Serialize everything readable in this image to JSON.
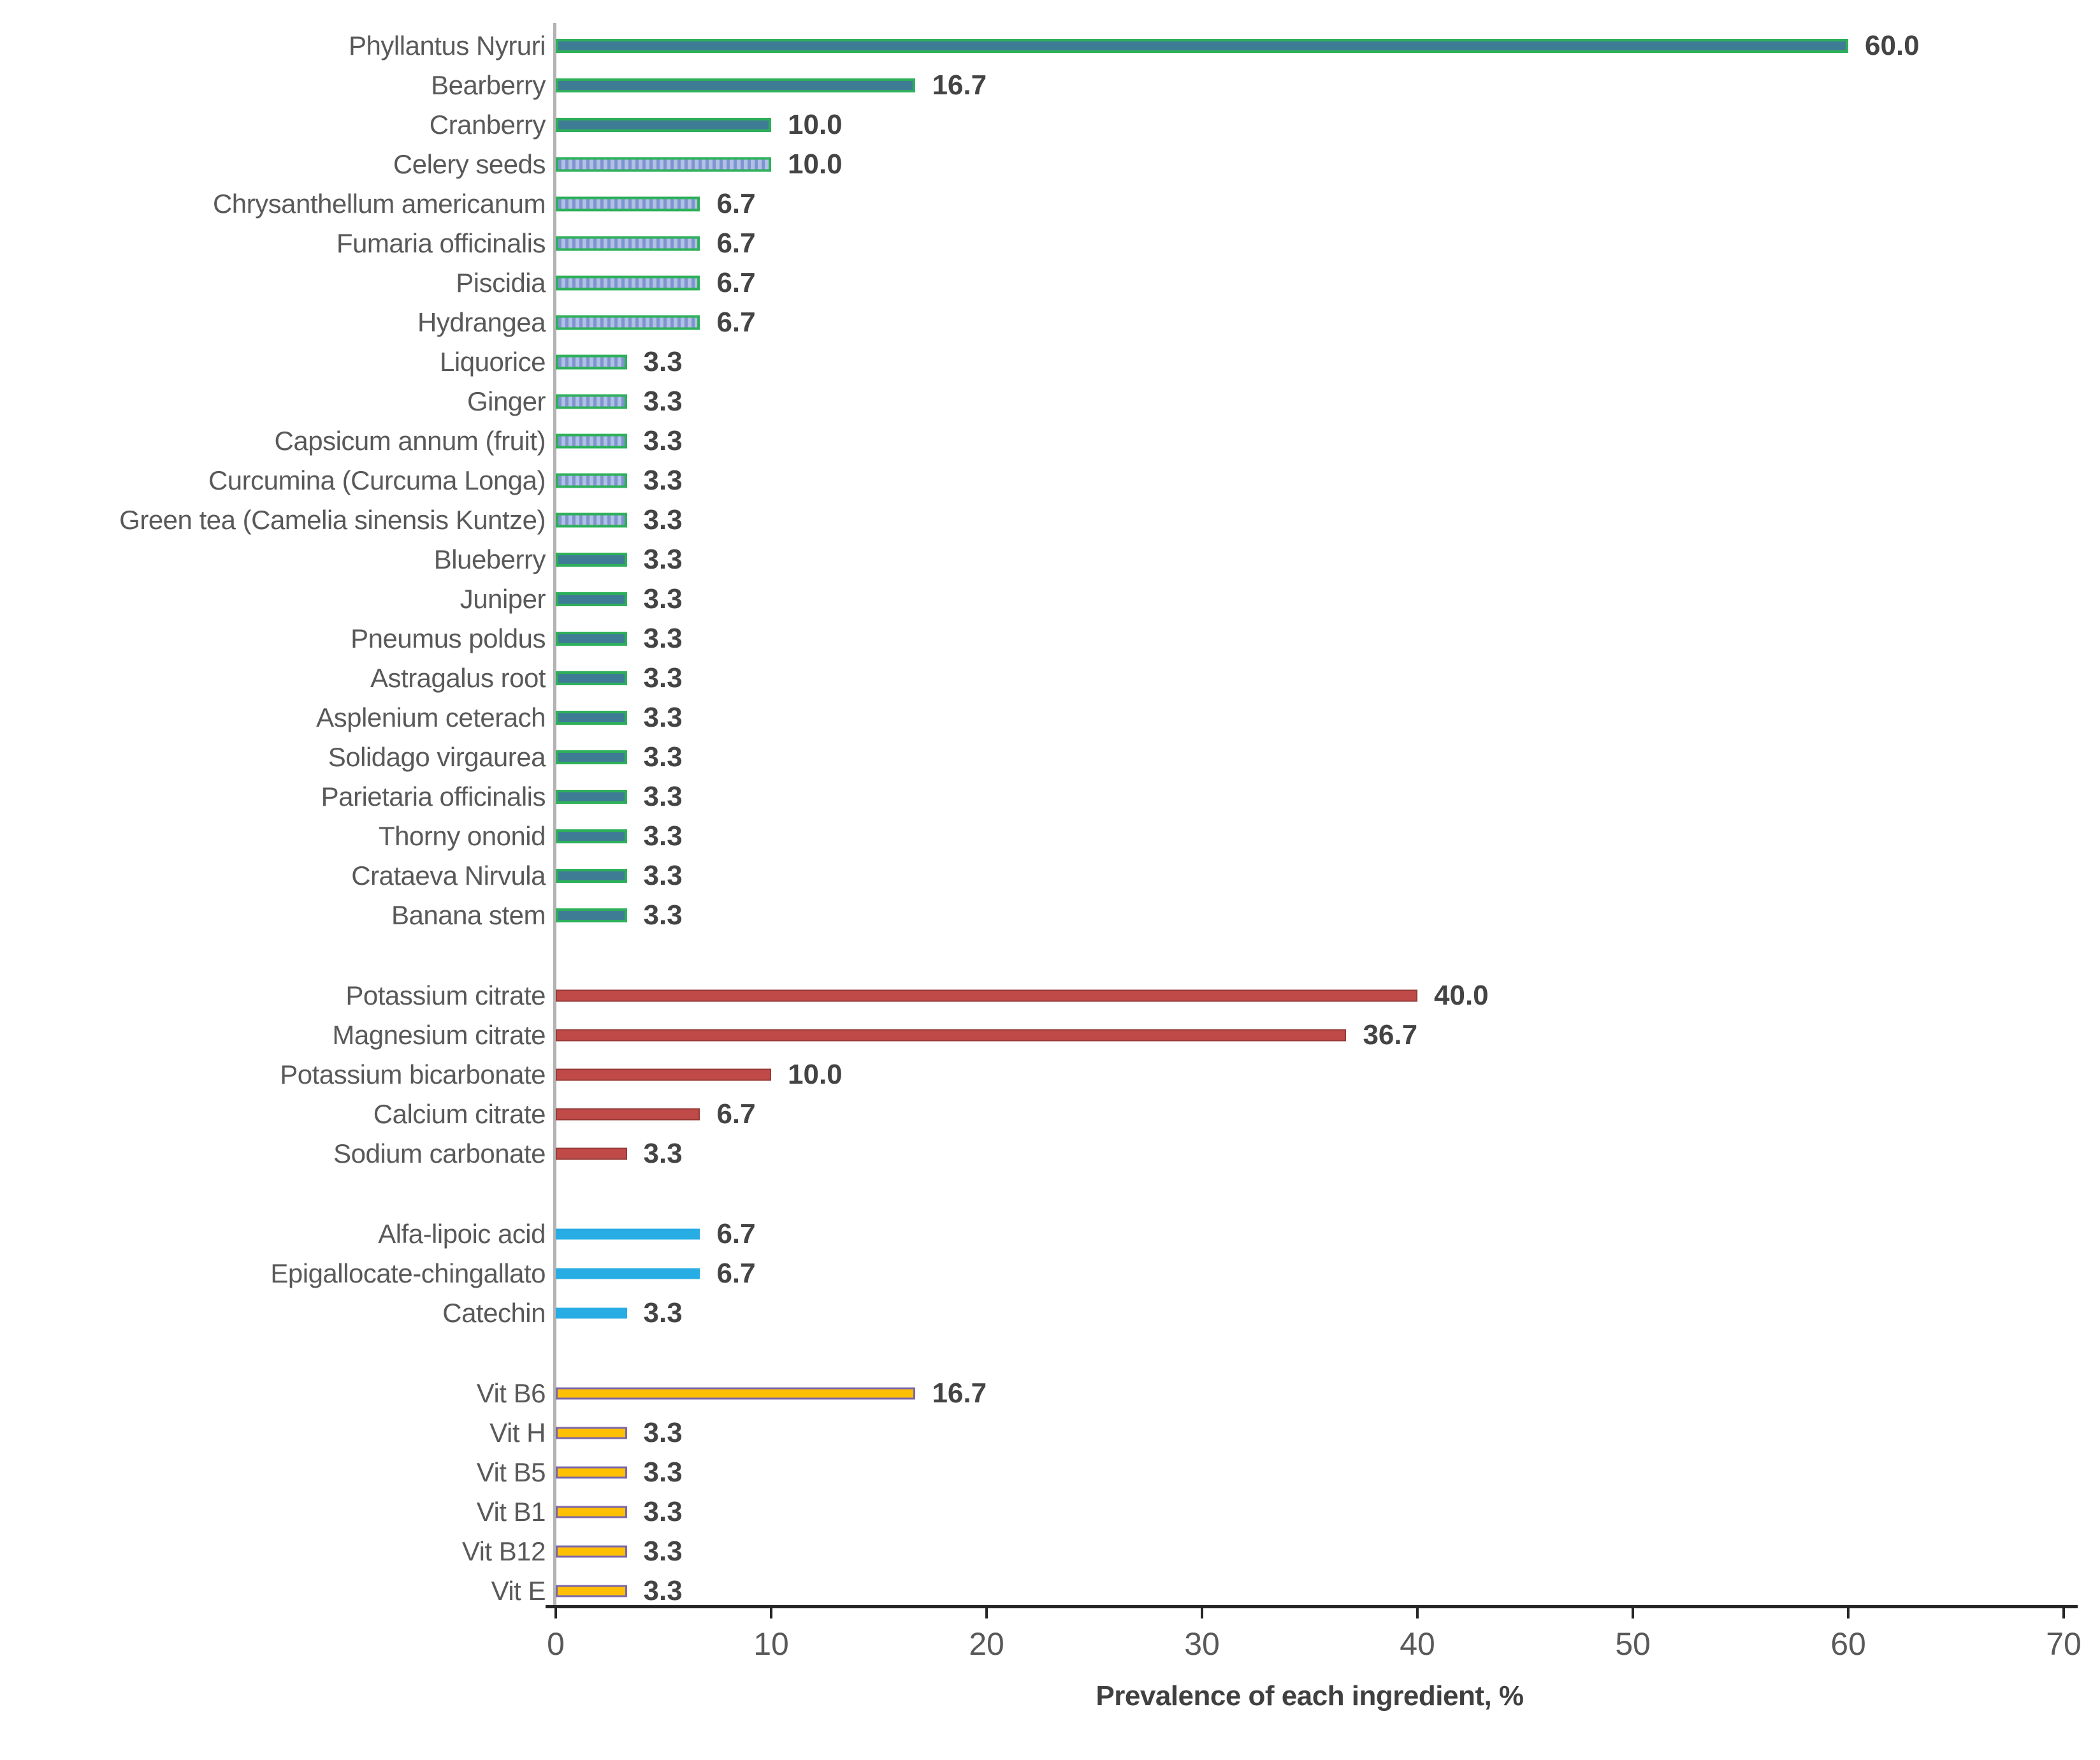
{
  "chart_data": {
    "type": "bar",
    "orientation": "horizontal",
    "title": "",
    "xlabel": "Prevalence of each ingredient, %",
    "ylabel": "",
    "xlim": [
      0,
      70
    ],
    "xticks": [
      0,
      10,
      20,
      30,
      40,
      50,
      60,
      70
    ],
    "grid": false,
    "legend": false,
    "value_labels_shown": true,
    "colors": {
      "teal_fill": "#3E7C96",
      "green_border": "#2EB05A",
      "stripe_dark": "#7D95CE",
      "stripe_light": "#B2C0E6",
      "red_fill": "#BF4A47",
      "red_border": "#963B38",
      "blue_fill": "#27ACE3",
      "yellow_fill": "#FFC003",
      "purple_border": "#7C67A8",
      "axis_line": "#262626",
      "baseline": "#b3b3b3",
      "text": "#595959"
    },
    "groups": [
      {
        "name": "green-bars",
        "style": "teal",
        "items": [
          {
            "label": "Phyllantus Nyruri",
            "value": 60.0,
            "display": "60.0",
            "pattern": "solid"
          },
          {
            "label": "Bearberry",
            "value": 16.7,
            "display": "16.7",
            "pattern": "solid"
          },
          {
            "label": "Cranberry",
            "value": 10.0,
            "display": "10.0",
            "pattern": "solid"
          },
          {
            "label": "Celery seeds",
            "value": 10.0,
            "display": "10.0",
            "pattern": "striped"
          },
          {
            "label": "Chrysanthellum americanum",
            "value": 6.7,
            "display": "6.7",
            "pattern": "striped"
          },
          {
            "label": "Fumaria officinalis",
            "value": 6.7,
            "display": "6.7",
            "pattern": "striped"
          },
          {
            "label": "Piscidia",
            "value": 6.7,
            "display": "6.7",
            "pattern": "striped"
          },
          {
            "label": "Hydrangea",
            "value": 6.7,
            "display": "6.7",
            "pattern": "striped"
          },
          {
            "label": "Liquorice",
            "value": 3.3,
            "display": "3.3",
            "pattern": "striped"
          },
          {
            "label": "Ginger",
            "value": 3.3,
            "display": "3.3",
            "pattern": "striped"
          },
          {
            "label": "Capsicum annum (fruit)",
            "value": 3.3,
            "display": "3.3",
            "pattern": "striped"
          },
          {
            "label": "Curcumina (Curcuma Longa)",
            "value": 3.3,
            "display": "3.3",
            "pattern": "striped"
          },
          {
            "label": "Green tea (Camelia sinensis Kuntze)",
            "value": 3.3,
            "display": "3.3",
            "pattern": "striped"
          },
          {
            "label": "Blueberry",
            "value": 3.3,
            "display": "3.3",
            "pattern": "solid"
          },
          {
            "label": "Juniper",
            "value": 3.3,
            "display": "3.3",
            "pattern": "solid"
          },
          {
            "label": "Pneumus poldus",
            "value": 3.3,
            "display": "3.3",
            "pattern": "solid"
          },
          {
            "label": "Astragalus root",
            "value": 3.3,
            "display": "3.3",
            "pattern": "solid"
          },
          {
            "label": "Asplenium ceterach",
            "value": 3.3,
            "display": "3.3",
            "pattern": "solid"
          },
          {
            "label": "Solidago virgaurea",
            "value": 3.3,
            "display": "3.3",
            "pattern": "solid"
          },
          {
            "label": "Parietaria officinalis",
            "value": 3.3,
            "display": "3.3",
            "pattern": "solid"
          },
          {
            "label": "Thorny ononid",
            "value": 3.3,
            "display": "3.3",
            "pattern": "solid"
          },
          {
            "label": "Crataeva Nirvula",
            "value": 3.3,
            "display": "3.3",
            "pattern": "solid"
          },
          {
            "label": "Banana stem",
            "value": 3.3,
            "display": "3.3",
            "pattern": "solid"
          }
        ]
      },
      {
        "name": "red-bars",
        "style": "red",
        "items": [
          {
            "label": "Potassium citrate",
            "value": 40.0,
            "display": "40.0",
            "pattern": "solid"
          },
          {
            "label": "Magnesium citrate",
            "value": 36.7,
            "display": "36.7",
            "pattern": "solid"
          },
          {
            "label": "Potassium bicarbonate",
            "value": 10.0,
            "display": "10.0",
            "pattern": "solid"
          },
          {
            "label": "Calcium citrate",
            "value": 6.7,
            "display": "6.7",
            "pattern": "solid"
          },
          {
            "label": "Sodium carbonate",
            "value": 3.3,
            "display": "3.3",
            "pattern": "solid"
          }
        ]
      },
      {
        "name": "blue-bars",
        "style": "blue",
        "items": [
          {
            "label": "Alfa-lipoic acid",
            "value": 6.7,
            "display": "6.7",
            "pattern": "solid"
          },
          {
            "label": "Epigallocate-chingallato",
            "value": 6.7,
            "display": "6.7",
            "pattern": "solid"
          },
          {
            "label": "Catechin",
            "value": 3.3,
            "display": "3.3",
            "pattern": "solid"
          }
        ]
      },
      {
        "name": "yellow-bars",
        "style": "yellow",
        "items": [
          {
            "label": "Vit B6",
            "value": 16.7,
            "display": "16.7",
            "pattern": "solid"
          },
          {
            "label": "Vit H",
            "value": 3.3,
            "display": "3.3",
            "pattern": "solid"
          },
          {
            "label": "Vit B5",
            "value": 3.3,
            "display": "3.3",
            "pattern": "solid"
          },
          {
            "label": "Vit B1",
            "value": 3.3,
            "display": "3.3",
            "pattern": "solid"
          },
          {
            "label": "Vit B12",
            "value": 3.3,
            "display": "3.3",
            "pattern": "solid"
          },
          {
            "label": "Vit E",
            "value": 3.3,
            "display": "3.3",
            "pattern": "solid"
          }
        ]
      }
    ]
  }
}
